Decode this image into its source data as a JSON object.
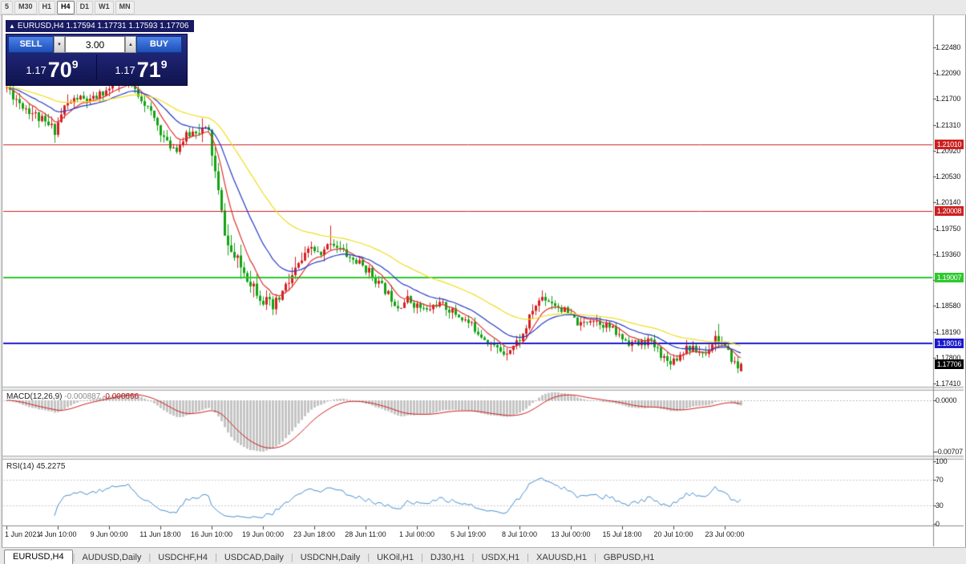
{
  "icons": {
    "collapse": "▲",
    "volume_down": "▼",
    "volume_up": "▲",
    "tab_separator": "|"
  },
  "toolbar": {
    "timeframes": [
      {
        "label": "5",
        "active": false
      },
      {
        "label": "M30",
        "active": false
      },
      {
        "label": "H1",
        "active": false
      },
      {
        "label": "H4",
        "active": true
      },
      {
        "label": "D1",
        "active": false
      },
      {
        "label": "W1",
        "active": false
      },
      {
        "label": "MN",
        "active": false
      }
    ]
  },
  "chart_title": {
    "text": "EURUSD,H4  1.17594 1.17731 1.17593 1.17706"
  },
  "trade_panel": {
    "sell_label": "SELL",
    "buy_label": "BUY",
    "volume": "3.00",
    "sell_price": {
      "prefix": "1.17",
      "big": "70",
      "sup": "9"
    },
    "buy_price": {
      "prefix": "1.17",
      "big": "71",
      "sup": "9"
    }
  },
  "price_axis": {
    "labels": [
      "1.22480",
      "1.22090",
      "1.21700",
      "1.21310",
      "1.20920",
      "1.20530",
      "1.20140",
      "1.19750",
      "1.19360",
      "1.18970",
      "1.18580",
      "1.18190",
      "1.17800",
      "1.17410"
    ]
  },
  "hlines": [
    {
      "label": "1.21010",
      "price": 1.2101,
      "color": "#cc2020",
      "width": 1
    },
    {
      "label": "1.20008",
      "price": 1.20008,
      "color": "#cc2020",
      "width": 1
    },
    {
      "label": "1.19007",
      "price": 1.19007,
      "color": "#2ec82e",
      "width": 2
    },
    {
      "label": "1.18016",
      "price": 1.18016,
      "color": "#1c1ccc",
      "width": 2
    }
  ],
  "current_price": {
    "label": "1.17706",
    "price": 1.17706,
    "bg": "#000000"
  },
  "macd": {
    "name": "MACD(12,26,9)",
    "value_main": "-0.000887",
    "value_signal": "-0.000666",
    "axis_top": "0.0000",
    "axis_bottom": "-0.00707",
    "histogram_color": "#c4c4c4",
    "signal_color": "#cc2222"
  },
  "rsi": {
    "name": "RSI(14)",
    "value": "45.2275",
    "axis": [
      100,
      70,
      30,
      0
    ],
    "levels": [
      70,
      30
    ],
    "line_color": "#4a8ecb"
  },
  "time_axis": {
    "labels": [
      "1 Jun 2021",
      "4 Jun 10:00",
      "9 Jun 00:00",
      "11 Jun 18:00",
      "16 Jun 10:00",
      "19 Jun 00:00",
      "23 Jun 18:00",
      "28 Jun 11:00",
      "1 Jul 00:00",
      "5 Jul 19:00",
      "8 Jul 10:00",
      "13 Jul 00:00",
      "15 Jul 18:00",
      "20 Jul 10:00",
      "23 Jul 00:00"
    ],
    "label_every": 16
  },
  "tabs": [
    {
      "label": "EURUSD,H4",
      "active": true
    },
    {
      "label": "AUDUSD,Daily",
      "active": false
    },
    {
      "label": "USDCHF,H4",
      "active": false
    },
    {
      "label": "USDCAD,Daily",
      "active": false
    },
    {
      "label": "USDCNH,Daily",
      "active": false
    },
    {
      "label": "UKOil,H1",
      "active": false
    },
    {
      "label": "DJ30,H1",
      "active": false
    },
    {
      "label": "USDX,H1",
      "active": false
    },
    {
      "label": "XAUUSD,H1",
      "active": false
    },
    {
      "label": "GBPUSD,H1",
      "active": false
    }
  ],
  "chart_data": {
    "type": "candlestick",
    "symbol": "EURUSD",
    "timeframe": "H4",
    "title": "EURUSD,H4",
    "current_ohlc": {
      "open": 1.17594,
      "high": 1.17731,
      "low": 1.17593,
      "close": 1.17706
    },
    "ylim": [
      1.1735,
      1.2298
    ],
    "y_tick_labels": [
      "1.22480",
      "1.22090",
      "1.21700",
      "1.21310",
      "1.20920",
      "1.20530",
      "1.20140",
      "1.19750",
      "1.19360",
      "1.18970",
      "1.18580",
      "1.18190",
      "1.17800",
      "1.17410"
    ],
    "x_labels": [
      "1 Jun 2021",
      "4 Jun 10:00",
      "9 Jun 00:00",
      "11 Jun 18:00",
      "16 Jun 10:00",
      "19 Jun 00:00",
      "23 Jun 18:00",
      "28 Jun 11:00",
      "1 Jul 00:00",
      "5 Jul 19:00",
      "8 Jul 10:00",
      "13 Jul 00:00",
      "15 Jul 18:00",
      "20 Jul 10:00",
      "23 Jul 00:00"
    ],
    "n_candles": 230,
    "up_color": "#d42020",
    "down_color": "#12a312",
    "price_path": [
      [
        0,
        1.2188
      ],
      [
        4,
        1.2165
      ],
      [
        8,
        1.215
      ],
      [
        12,
        1.2132
      ],
      [
        15,
        1.2124
      ],
      [
        18,
        1.2158
      ],
      [
        22,
        1.2172
      ],
      [
        26,
        1.2166
      ],
      [
        30,
        1.218
      ],
      [
        34,
        1.219
      ],
      [
        38,
        1.2194
      ],
      [
        42,
        1.2172
      ],
      [
        46,
        1.214
      ],
      [
        50,
        1.2102
      ],
      [
        53,
        1.2096
      ],
      [
        56,
        1.2114
      ],
      [
        60,
        1.2126
      ],
      [
        63,
        1.2118
      ],
      [
        65,
        1.2058
      ],
      [
        67,
        1.1996
      ],
      [
        69,
        1.1948
      ],
      [
        71,
        1.193
      ],
      [
        74,
        1.191
      ],
      [
        77,
        1.189
      ],
      [
        80,
        1.1868
      ],
      [
        83,
        1.1852
      ],
      [
        86,
        1.1878
      ],
      [
        89,
        1.1902
      ],
      [
        92,
        1.1926
      ],
      [
        95,
        1.1946
      ],
      [
        98,
        1.1932
      ],
      [
        101,
        1.1956
      ],
      [
        104,
        1.1944
      ],
      [
        107,
        1.193
      ],
      [
        110,
        1.1922
      ],
      [
        113,
        1.191
      ],
      [
        116,
        1.1892
      ],
      [
        119,
        1.1876
      ],
      [
        122,
        1.1858
      ],
      [
        125,
        1.1868
      ],
      [
        128,
        1.1858
      ],
      [
        131,
        1.185
      ],
      [
        134,
        1.1862
      ],
      [
        137,
        1.1856
      ],
      [
        140,
        1.1846
      ],
      [
        143,
        1.1836
      ],
      [
        146,
        1.1824
      ],
      [
        149,
        1.181
      ],
      [
        152,
        1.1796
      ],
      [
        155,
        1.1788
      ],
      [
        158,
        1.1798
      ],
      [
        161,
        1.1814
      ],
      [
        164,
        1.1852
      ],
      [
        167,
        1.1872
      ],
      [
        170,
        1.1864
      ],
      [
        173,
        1.1854
      ],
      [
        176,
        1.1842
      ],
      [
        179,
        1.1828
      ],
      [
        182,
        1.184
      ],
      [
        185,
        1.1834
      ],
      [
        188,
        1.1826
      ],
      [
        191,
        1.1812
      ],
      [
        194,
        1.1804
      ],
      [
        197,
        1.18
      ],
      [
        200,
        1.1806
      ],
      [
        203,
        1.1792
      ],
      [
        206,
        1.1774
      ],
      [
        209,
        1.178
      ],
      [
        212,
        1.1796
      ],
      [
        215,
        1.179
      ],
      [
        218,
        1.1786
      ],
      [
        221,
        1.1812
      ],
      [
        223,
        1.18
      ],
      [
        225,
        1.1786
      ],
      [
        227,
        1.1772
      ],
      [
        228,
        1.1763
      ],
      [
        229,
        1.1771
      ]
    ],
    "wick_events": [
      {
        "i": 15,
        "low": 1.2104
      },
      {
        "i": 39,
        "high": 1.2206
      },
      {
        "i": 101,
        "high": 1.1979
      },
      {
        "i": 207,
        "low": 1.1764
      },
      {
        "i": 222,
        "high": 1.1831
      }
    ],
    "ma_lines": [
      {
        "period": 8,
        "color": "#e03030"
      },
      {
        "period": 20,
        "color": "#2438c8"
      },
      {
        "period": 45,
        "color": "#f0dc1e"
      }
    ],
    "horizontal_levels": [
      1.2101,
      1.20008,
      1.19007,
      1.18016
    ],
    "indicators": [
      {
        "name": "MACD",
        "params": [
          12,
          26,
          9
        ],
        "current_main": -0.000887,
        "current_signal": -0.000666
      },
      {
        "name": "RSI",
        "params": [
          14
        ],
        "current": 45.2275
      }
    ]
  }
}
